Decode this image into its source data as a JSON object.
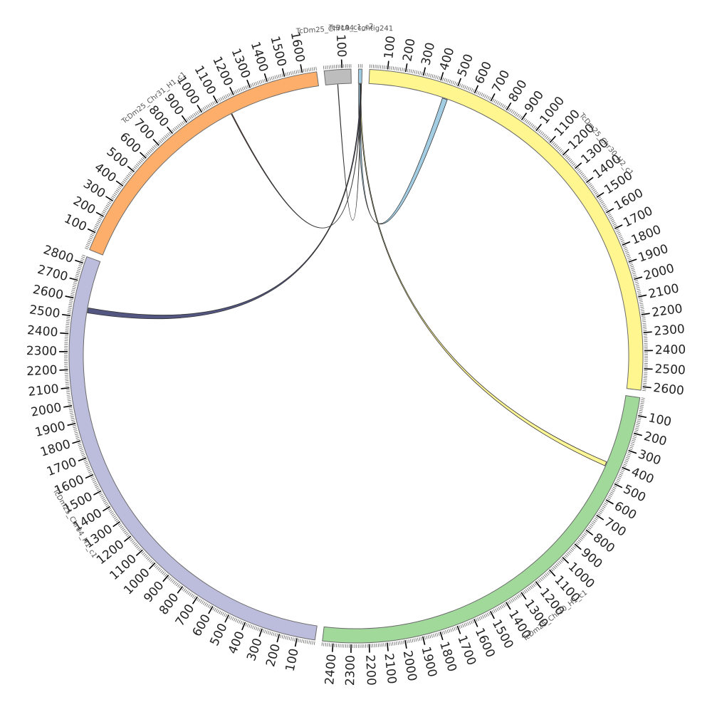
{
  "chromosomes": [
    {
      "id": "chrA",
      "name": "TcBcA4_contig241",
      "length": 20,
      "color": "#9ecae1",
      "tick_labels": []
    },
    {
      "id": "chr30H2",
      "name": "TcDm25_Chr30_H2_c1",
      "length": 2620,
      "color": "#fff68f",
      "tick_labels": [
        "100",
        "200",
        "300",
        "400",
        "500",
        "600",
        "700",
        "800",
        "900",
        "1000",
        "1100",
        "1200",
        "1300",
        "1400",
        "1500",
        "1600",
        "1700",
        "1800",
        "1900",
        "2000",
        "2100",
        "2200",
        "2300",
        "2400",
        "2500",
        "2600"
      ]
    },
    {
      "id": "chr30H1",
      "name": "TcDm25_Chr30_H1_c1",
      "length": 2460,
      "color": "#a1d99b",
      "tick_labels": [
        "100",
        "200",
        "300",
        "400",
        "500",
        "600",
        "700",
        "800",
        "900",
        "1000",
        "1100",
        "1200",
        "1300",
        "1400",
        "1500",
        "1600",
        "1700",
        "1800",
        "1900",
        "2000",
        "2100",
        "2200",
        "2300",
        "2400"
      ]
    },
    {
      "id": "chr04",
      "name": "TcDm25_Chr04_H1_c1",
      "length": 2840,
      "color": "#bcbddc",
      "tick_labels": [
        "100",
        "200",
        "300",
        "400",
        "500",
        "600",
        "700",
        "800",
        "900",
        "1000",
        "1100",
        "1200",
        "1300",
        "1400",
        "1500",
        "1600",
        "1700",
        "1800",
        "1900",
        "2000",
        "2100",
        "2200",
        "2300",
        "2400",
        "2500",
        "2600",
        "2700",
        "2800"
      ]
    },
    {
      "id": "chr31",
      "name": "TcDm25_Chr31_H1_c1",
      "length": 1680,
      "color": "#fdae6b",
      "tick_labels": [
        "100",
        "200",
        "300",
        "400",
        "500",
        "600",
        "700",
        "800",
        "900",
        "1000",
        "1100",
        "1200",
        "1300",
        "1400",
        "1500",
        "1600"
      ]
    },
    {
      "id": "chr19",
      "name": "TcDm25_Chr19_c1_c2",
      "length": 150,
      "color": "#bdbdbd",
      "tick_labels": [
        "100"
      ]
    }
  ],
  "links": [
    {
      "from": "chrA",
      "s1": 2,
      "e1": 14,
      "to": "chr30H2",
      "s2": 440,
      "e2": 470,
      "color": "#9ecae1"
    },
    {
      "from": "chrA",
      "s1": 10,
      "e1": 16,
      "to": "chr30H1",
      "s2": 405,
      "e2": 430,
      "color": "#fff68f"
    },
    {
      "from": "chrA",
      "s1": 12,
      "e1": 18,
      "to": "chr04",
      "s2": 2530,
      "e2": 2560,
      "color": "#4a4d7a"
    },
    {
      "from": "chrA",
      "s1": 15,
      "e1": 17,
      "to": "chr31",
      "s2": 1140,
      "e2": 1145,
      "color": "#6b3a2a"
    },
    {
      "from": "chrA",
      "s1": 16,
      "e1": 18,
      "to": "chr19",
      "s2": 70,
      "e2": 72,
      "color": "#4a4d7a"
    }
  ]
}
